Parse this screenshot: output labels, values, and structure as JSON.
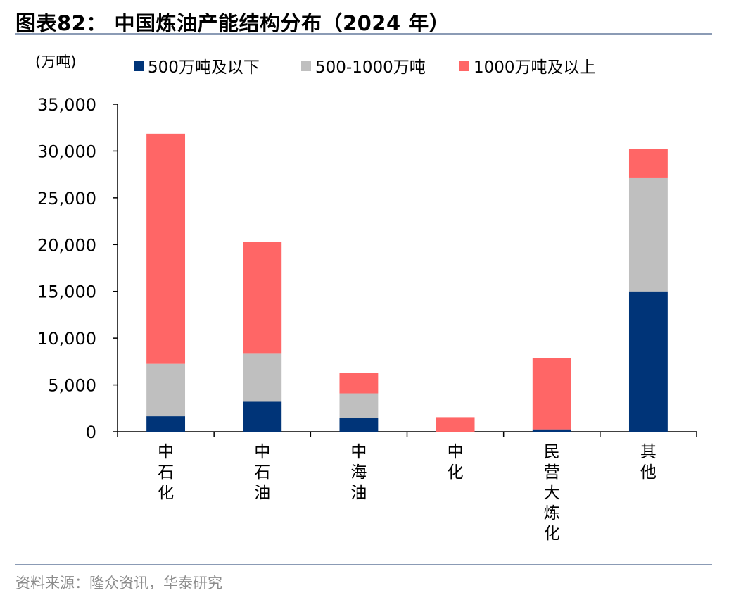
{
  "header": {
    "title": "图表82： 中国炼油产能结构分布（2024 年）"
  },
  "footer": {
    "source": "资料来源：隆众资讯，华泰研究"
  },
  "colors": {
    "series_1": "#003478",
    "series_2": "#bfbfbf",
    "series_3": "#ff6666",
    "rule": "#8b9bb5"
  },
  "chart_data": {
    "type": "bar",
    "stacked": true,
    "unit_label": "(万吨)",
    "categories": [
      "中石化",
      "中石油",
      "中海油",
      "中化",
      "民营大炼化",
      "其他"
    ],
    "series": [
      {
        "name": "500万吨及以下",
        "values": [
          1650,
          3200,
          1450,
          0,
          250,
          15000
        ]
      },
      {
        "name": "500-1000万吨",
        "values": [
          5600,
          5200,
          2650,
          0,
          0,
          12100
        ]
      },
      {
        "name": "1000万吨及以上",
        "values": [
          24600,
          11900,
          2200,
          1550,
          7600,
          3100
        ]
      }
    ],
    "ylim": [
      0,
      35000
    ],
    "yticks": [
      "0",
      "5,000",
      "10,000",
      "15,000",
      "20,000",
      "25,000",
      "30,000",
      "35,000"
    ],
    "legend_position": "top",
    "grid": false
  }
}
